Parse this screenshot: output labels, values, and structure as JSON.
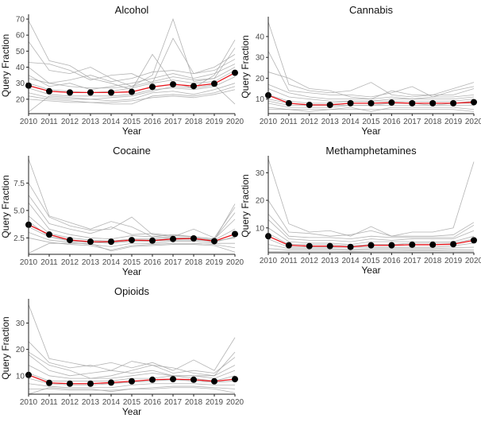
{
  "chart_data": [
    {
      "type": "line",
      "title": "Alcohol",
      "xlabel": "Year",
      "ylabel": "Query Fraction",
      "x": [
        2010,
        2011,
        2012,
        2013,
        2014,
        2015,
        2016,
        2017,
        2018,
        2019,
        2020
      ],
      "ylim": [
        11,
        71
      ],
      "yticks": [
        20,
        30,
        40,
        50,
        60,
        70
      ],
      "ytick_labels": [
        "20",
        "30",
        "40",
        "50",
        "60",
        "70"
      ],
      "mean": [
        28.5,
        25,
        24.2,
        24.2,
        24.2,
        24.6,
        27.7,
        29.3,
        28.2,
        29.7,
        36.5
      ],
      "series": [
        [
          69,
          44,
          41,
          33,
          30,
          26,
          48,
          30,
          27,
          35,
          57
        ],
        [
          56,
          38,
          36,
          40,
          33,
          28,
          35,
          70,
          31,
          33,
          52
        ],
        [
          43,
          42,
          38,
          32,
          35,
          36,
          30,
          58,
          36,
          40,
          48
        ],
        [
          40,
          30,
          32,
          35,
          31,
          33,
          37,
          38,
          36,
          38,
          45
        ],
        [
          35,
          28,
          30,
          26,
          28,
          30,
          33,
          36,
          33,
          36,
          42
        ],
        [
          30,
          26,
          25,
          24,
          25,
          27,
          30,
          32,
          30,
          31,
          38
        ],
        [
          27,
          23,
          22,
          22,
          22,
          23,
          26,
          27,
          26,
          28,
          34
        ],
        [
          24,
          21,
          20,
          20,
          19,
          20,
          24,
          25,
          23,
          26,
          30
        ],
        [
          22,
          20,
          19,
          18,
          17,
          17,
          22,
          23,
          22,
          24,
          28
        ],
        [
          12,
          22,
          21,
          20,
          21,
          22,
          25,
          28,
          27,
          29,
          17
        ],
        [
          33,
          30,
          28,
          27,
          27,
          28,
          31,
          34,
          32,
          33,
          40
        ],
        [
          20,
          19,
          18,
          18,
          18,
          19,
          21,
          22,
          21,
          23,
          26
        ]
      ]
    },
    {
      "type": "line",
      "title": "Cannabis",
      "xlabel": "Year",
      "ylabel": "Query Fraction",
      "x": [
        2010,
        2011,
        2012,
        2013,
        2014,
        2015,
        2016,
        2017,
        2018,
        2019,
        2020
      ],
      "ylim": [
        3,
        48
      ],
      "yticks": [
        10,
        20,
        30,
        40
      ],
      "ytick_labels": [
        "10",
        "20",
        "30",
        "40"
      ],
      "mean": [
        11.8,
        8,
        7.2,
        7.2,
        8,
        8,
        8.3,
        8,
        8,
        8,
        8.5
      ],
      "series": [
        [
          47,
          17,
          14,
          13,
          14,
          18,
          12,
          11,
          12,
          15,
          18
        ],
        [
          33,
          14,
          13,
          12,
          12,
          11,
          13,
          16,
          11,
          14,
          16
        ],
        [
          23,
          20,
          15,
          14,
          11,
          10,
          14,
          12,
          12,
          12,
          15
        ],
        [
          17,
          13,
          11,
          10,
          10,
          10,
          11,
          10,
          11,
          11,
          12
        ],
        [
          15,
          11,
          10,
          9,
          9,
          9,
          10,
          10,
          10,
          10,
          11
        ],
        [
          12,
          9,
          8,
          8,
          9,
          9,
          9,
          9,
          9,
          9,
          10
        ],
        [
          10,
          8,
          7,
          7,
          8,
          8,
          8,
          8,
          8,
          8,
          8
        ],
        [
          8,
          6,
          6,
          6,
          7,
          7,
          7,
          7,
          7,
          7,
          7
        ],
        [
          6,
          5,
          5,
          5,
          6,
          4,
          6,
          6,
          6,
          6,
          5
        ],
        [
          5,
          5,
          4,
          5,
          5,
          5,
          5,
          5,
          5,
          5,
          4
        ],
        [
          9,
          7,
          7,
          7,
          7,
          7,
          8,
          8,
          7,
          8,
          9
        ]
      ]
    },
    {
      "type": "line",
      "title": "Cocaine",
      "xlabel": "Year",
      "ylabel": "Query Fraction",
      "x": [
        2010,
        2011,
        2012,
        2013,
        2014,
        2015,
        2016,
        2017,
        2018,
        2019,
        2020
      ],
      "ylim": [
        1,
        9.7
      ],
      "yticks": [
        2.5,
        5.0,
        7.5
      ],
      "ytick_labels": [
        "2.5",
        "5.0",
        "7.5"
      ],
      "mean": [
        3.7,
        2.8,
        2.3,
        2.15,
        2.15,
        2.3,
        2.25,
        2.4,
        2.45,
        2.2,
        2.85
      ],
      "series": [
        [
          9.7,
          4.5,
          3.9,
          3.3,
          4,
          3.5,
          2.6,
          2.5,
          2.4,
          2.3,
          5.6
        ],
        [
          7.5,
          4.4,
          3.6,
          3.2,
          3.3,
          4.4,
          2.8,
          2.6,
          3.3,
          2.5,
          5.3
        ],
        [
          6.4,
          3.8,
          3.3,
          2.9,
          3.5,
          2.8,
          2.9,
          2.7,
          2.6,
          2.4,
          4.8
        ],
        [
          5.7,
          3.3,
          2.8,
          2.5,
          2.4,
          2.7,
          2.6,
          2.8,
          2.6,
          2.4,
          4.2
        ],
        [
          4.5,
          2.9,
          2.5,
          2.3,
          2.2,
          2.4,
          2.4,
          2.5,
          2.5,
          2.3,
          3.3
        ],
        [
          3.5,
          2.6,
          2.3,
          2.1,
          2,
          2.2,
          2.2,
          2.3,
          2.3,
          2.2,
          2.5
        ],
        [
          3,
          2.3,
          2.1,
          1.9,
          1.7,
          2,
          2,
          2.2,
          2.2,
          2,
          2
        ],
        [
          2.5,
          2.1,
          1.9,
          1.8,
          1.4,
          1.8,
          1.9,
          2,
          2,
          1.9,
          1.6
        ],
        [
          1.1,
          2,
          2,
          2,
          1.3,
          1.7,
          1.8,
          1.9,
          1.9,
          1.8,
          1.2
        ],
        [
          4,
          2.6,
          2.2,
          2.1,
          2.1,
          2.3,
          2.3,
          2.4,
          2.4,
          2.1,
          2.6
        ]
      ]
    },
    {
      "type": "line",
      "title": "Methamphetamines",
      "xlabel": "Year",
      "ylabel": "Query Fraction",
      "x": [
        2010,
        2011,
        2012,
        2013,
        2014,
        2015,
        2016,
        2017,
        2018,
        2019,
        2020
      ],
      "ylim": [
        1,
        35
      ],
      "yticks": [
        10,
        20,
        30
      ],
      "ytick_labels": [
        "10",
        "20",
        "30"
      ],
      "mean": [
        7,
        3.7,
        3.4,
        3.4,
        3.1,
        3.7,
        3.7,
        3.9,
        3.9,
        4.1,
        5.5
      ],
      "series": [
        [
          35,
          11.5,
          8.5,
          9,
          7,
          10.5,
          7,
          8.5,
          8.5,
          10,
          34
        ],
        [
          20,
          8.5,
          8,
          7,
          7.5,
          9,
          7,
          7,
          7,
          7.5,
          12
        ],
        [
          15,
          7,
          6.5,
          6.5,
          6,
          7,
          6.5,
          6.5,
          6.5,
          6.5,
          11
        ],
        [
          13,
          6,
          5.5,
          5.5,
          5,
          6,
          5.5,
          6,
          6,
          6,
          9
        ],
        [
          10,
          5,
          4.5,
          4.5,
          4,
          5,
          5,
          5,
          5,
          5,
          7
        ],
        [
          8,
          4,
          4,
          4,
          3.5,
          4,
          4,
          4.5,
          4.5,
          4.5,
          6
        ],
        [
          6,
          3,
          3,
          3,
          3,
          3,
          3,
          3,
          3,
          3.5,
          4.5
        ],
        [
          4,
          2.5,
          2.5,
          2.5,
          2.2,
          2.5,
          2.5,
          2.5,
          2.5,
          2.8,
          3
        ],
        [
          2.5,
          2,
          2,
          2,
          1.8,
          2,
          2,
          2,
          2,
          2.2,
          2
        ],
        [
          1.5,
          1.5,
          1.5,
          1.5,
          1.4,
          1.5,
          1.5,
          1.6,
          1.6,
          1.6,
          1.5
        ]
      ]
    },
    {
      "type": "line",
      "title": "Opioids",
      "xlabel": "Year",
      "ylabel": "Query Fraction",
      "x": [
        2010,
        2011,
        2012,
        2013,
        2014,
        2015,
        2016,
        2017,
        2018,
        2019,
        2020
      ],
      "ylim": [
        3,
        38
      ],
      "yticks": [
        10,
        20,
        30
      ],
      "ytick_labels": [
        "10",
        "20",
        "30"
      ],
      "mean": [
        10.3,
        7.3,
        7,
        7,
        7.4,
        7.9,
        8.5,
        8.7,
        8.5,
        7.9,
        8.7
      ],
      "series": [
        [
          37,
          16.5,
          15,
          13.5,
          15,
          13,
          15,
          12,
          16,
          12,
          24.5
        ],
        [
          23,
          15,
          13,
          14,
          12,
          15.5,
          14,
          13,
          11,
          10,
          19
        ],
        [
          19,
          14,
          12,
          9,
          10,
          12,
          14,
          11,
          12,
          11,
          17
        ],
        [
          18,
          12,
          10,
          11,
          12,
          11,
          12,
          10,
          10,
          10,
          14
        ],
        [
          14,
          10,
          9,
          9,
          9,
          10,
          11,
          10,
          10,
          9,
          12
        ],
        [
          11,
          8,
          8,
          8,
          8,
          9,
          9,
          10,
          9,
          8,
          10
        ],
        [
          9,
          7,
          6.5,
          6.5,
          7,
          7.5,
          8,
          8.5,
          8,
          7.5,
          8
        ],
        [
          7,
          6,
          5.5,
          5.5,
          5.5,
          6.5,
          7,
          7,
          7,
          6.5,
          6.5
        ],
        [
          5,
          5,
          4.5,
          4.5,
          4.5,
          5,
          5.5,
          6,
          6,
          5.5,
          5
        ],
        [
          3,
          5.5,
          5,
          5,
          4,
          5,
          5,
          5.5,
          5.5,
          5,
          3.5
        ]
      ]
    }
  ]
}
